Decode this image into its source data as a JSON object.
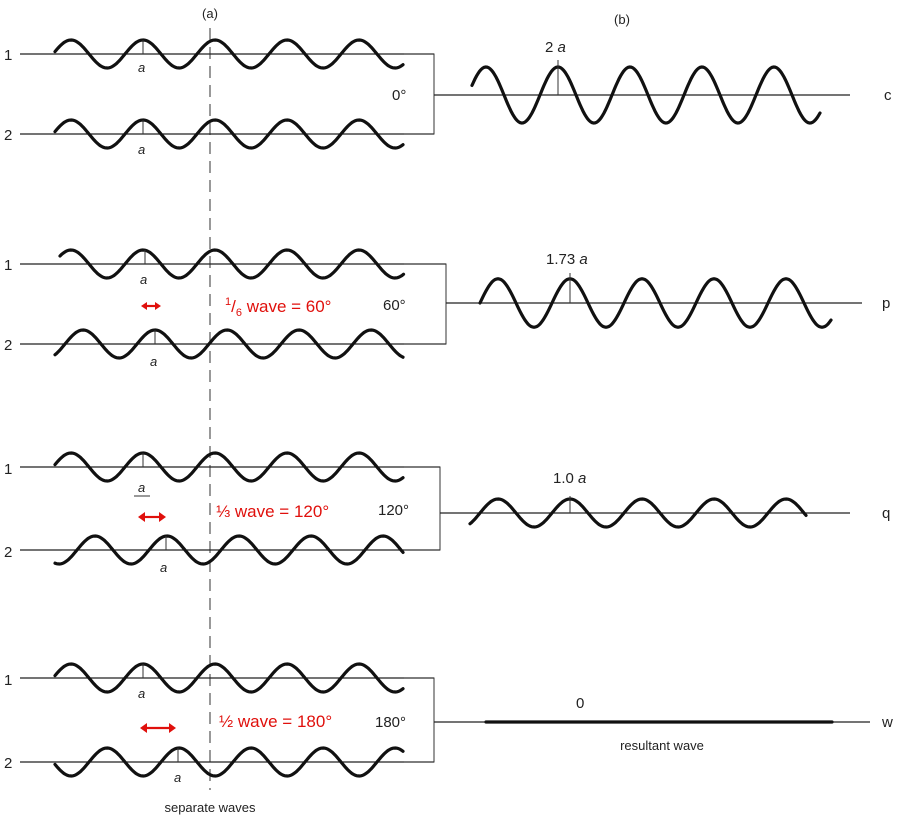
{
  "panel_labels": {
    "a": "(a)",
    "b": "(b)"
  },
  "caption_separate": "separate waves",
  "caption_resultant": "resultant wave",
  "rows": [
    {
      "wave1_label": "1",
      "wave2_label": "2",
      "amp_label_1": "a",
      "amp_label_2": "a",
      "phase_label": "0°",
      "shift_fraction": 0,
      "annotation_prefix": "",
      "annotation_text": "",
      "result_amp_label": "2 a",
      "result_amp_coef": "2",
      "result_amp_var": "a",
      "result_amplitude_ratio": 2.0,
      "result_letter": "c"
    },
    {
      "wave1_label": "1",
      "wave2_label": "2",
      "amp_label_1": "a",
      "amp_label_2": "a",
      "phase_label": "60°",
      "shift_fraction": 0.1667,
      "annotation_sup": "1",
      "annotation_sub": "6",
      "annotation_text": " wave = 60°",
      "result_amp_coef": "1.73",
      "result_amp_var": "a",
      "result_amplitude_ratio": 1.73,
      "result_letter": "p"
    },
    {
      "wave1_label": "1",
      "wave2_label": "2",
      "amp_label_1": "a",
      "amp_label_2": "a",
      "phase_label": "120°",
      "shift_fraction": 0.3333,
      "annotation_text": "⅓ wave = 120°",
      "result_amp_coef": "1.0",
      "result_amp_var": "a",
      "result_amplitude_ratio": 1.0,
      "result_letter": "q"
    },
    {
      "wave1_label": "1",
      "wave2_label": "2",
      "amp_label_1": "a",
      "amp_label_2": "a",
      "phase_label": "180°",
      "shift_fraction": 0.5,
      "annotation_text": "½ wave = 180°",
      "result_amp_coef": "0",
      "result_amplitude_ratio": 0,
      "result_letter": "w"
    }
  ]
}
